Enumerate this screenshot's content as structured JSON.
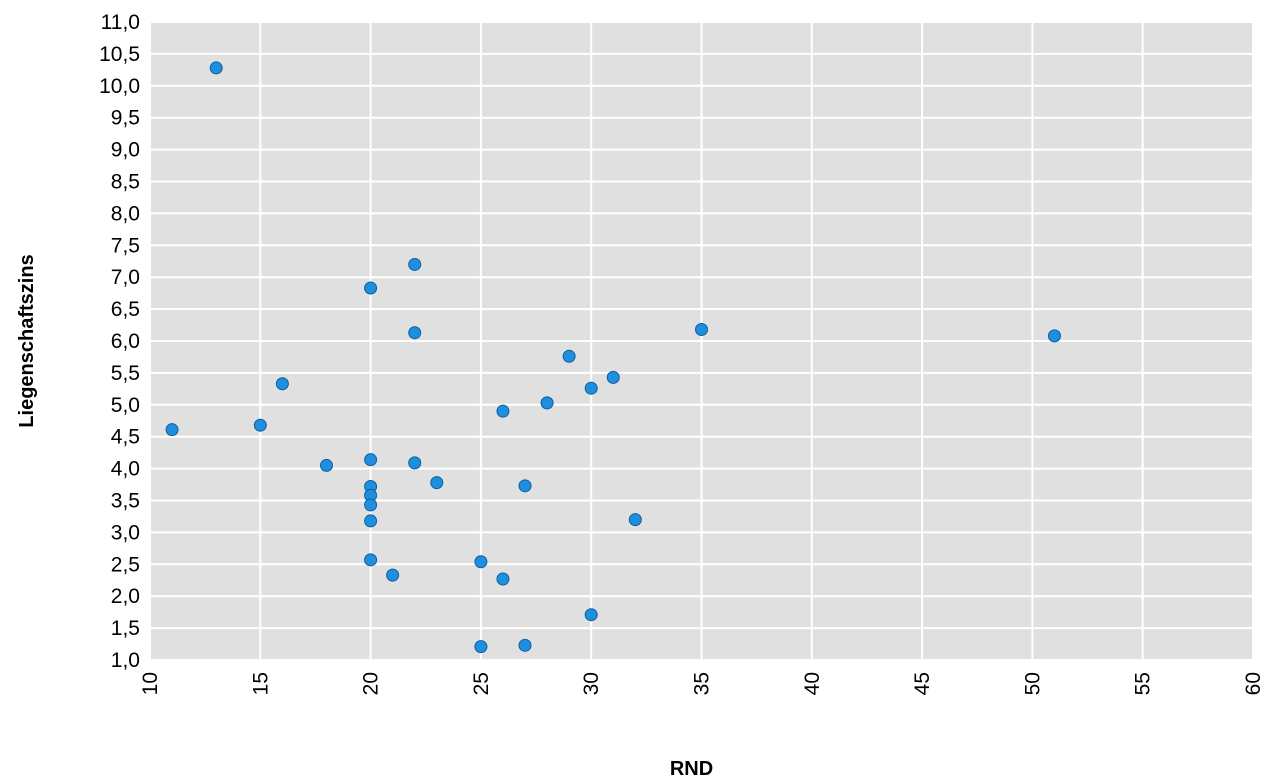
{
  "chart_data": {
    "type": "scatter",
    "title": "",
    "xlabel": "RND",
    "ylabel": "Liegenschaftszins",
    "xlim": [
      10,
      60
    ],
    "ylim": [
      1.0,
      11.0
    ],
    "x_ticks": [
      "10",
      "15",
      "20",
      "25",
      "30",
      "35",
      "40",
      "45",
      "50",
      "55",
      "60"
    ],
    "y_ticks": [
      "1,0",
      "1,5",
      "2,0",
      "2,5",
      "3,0",
      "3,5",
      "4,0",
      "4,5",
      "5,0",
      "5,5",
      "6,0",
      "6,5",
      "7,0",
      "7,5",
      "8,0",
      "8,5",
      "9,0",
      "9,5",
      "10,0",
      "10,5",
      "11,0"
    ],
    "grid": true,
    "legend": "none",
    "colors": {
      "background": "#e0e0e0",
      "grid": "#ffffff",
      "marker": "#1e8fde",
      "marker_edge": "#0d5e9e"
    },
    "series": [
      {
        "points": [
          {
            "x": 13,
            "y": 10.28
          },
          {
            "x": 22,
            "y": 7.2
          },
          {
            "x": 20,
            "y": 6.83
          },
          {
            "x": 22,
            "y": 6.13
          },
          {
            "x": 35,
            "y": 6.18
          },
          {
            "x": 51,
            "y": 6.08
          },
          {
            "x": 29,
            "y": 5.76
          },
          {
            "x": 31,
            "y": 5.43
          },
          {
            "x": 16,
            "y": 5.33
          },
          {
            "x": 30,
            "y": 5.26
          },
          {
            "x": 28,
            "y": 5.03
          },
          {
            "x": 26,
            "y": 4.9
          },
          {
            "x": 15,
            "y": 4.68
          },
          {
            "x": 11,
            "y": 4.61
          },
          {
            "x": 20,
            "y": 4.14
          },
          {
            "x": 22,
            "y": 4.09
          },
          {
            "x": 18,
            "y": 4.05
          },
          {
            "x": 23,
            "y": 3.78
          },
          {
            "x": 20,
            "y": 3.72
          },
          {
            "x": 27,
            "y": 3.73
          },
          {
            "x": 20,
            "y": 3.58
          },
          {
            "x": 20,
            "y": 3.43
          },
          {
            "x": 32,
            "y": 3.2
          },
          {
            "x": 20,
            "y": 3.18
          },
          {
            "x": 20,
            "y": 2.57
          },
          {
            "x": 25,
            "y": 2.54
          },
          {
            "x": 21,
            "y": 2.33
          },
          {
            "x": 26,
            "y": 2.27
          },
          {
            "x": 30,
            "y": 1.71
          },
          {
            "x": 27,
            "y": 1.23
          },
          {
            "x": 25,
            "y": 1.21
          }
        ]
      }
    ]
  }
}
